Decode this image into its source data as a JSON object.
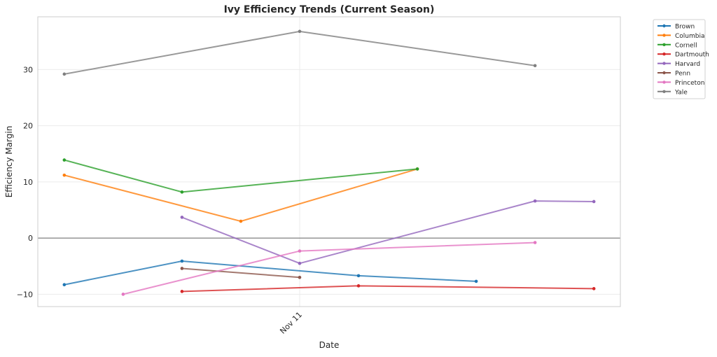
{
  "chart_data": {
    "type": "line",
    "title": "Ivy Efficiency Trends (Current Season)",
    "xlabel": "Date",
    "ylabel": "Efficiency Margin",
    "x_note": "x values are day offsets relative to the labeled tick",
    "xlim": [
      -4.45,
      5.45
    ],
    "ylim": [
      -12.2,
      39.4
    ],
    "xticks": [
      {
        "x": 0,
        "label": "Nov 11"
      }
    ],
    "yticks": [
      -10,
      0,
      10,
      20,
      30
    ],
    "grid": true,
    "reference_line_y": 0,
    "legend_placement": "outside-top-right",
    "series": [
      {
        "name": "Brown",
        "color": "#1f77b4",
        "points": [
          [
            -4,
            -8.3
          ],
          [
            -2,
            -4.1
          ],
          [
            1,
            -6.7
          ],
          [
            3,
            -7.7
          ]
        ]
      },
      {
        "name": "Columbia",
        "color": "#ff7f0e",
        "points": [
          [
            -4,
            11.2
          ],
          [
            -1,
            3.0
          ],
          [
            2,
            12.3
          ]
        ]
      },
      {
        "name": "Cornell",
        "color": "#2ca02c",
        "points": [
          [
            -4,
            13.9
          ],
          [
            -2,
            8.2
          ],
          [
            2,
            12.3
          ]
        ]
      },
      {
        "name": "Dartmouth",
        "color": "#d62728",
        "points": [
          [
            -2,
            -9.5
          ],
          [
            1,
            -8.5
          ],
          [
            5,
            -9.0
          ]
        ]
      },
      {
        "name": "Harvard",
        "color": "#9467bd",
        "points": [
          [
            -2,
            3.7
          ],
          [
            0,
            -4.5
          ],
          [
            4,
            6.6
          ],
          [
            5,
            6.5
          ]
        ]
      },
      {
        "name": "Penn",
        "color": "#8c564b",
        "points": [
          [
            -2,
            -5.4
          ],
          [
            0,
            -7.0
          ]
        ]
      },
      {
        "name": "Princeton",
        "color": "#e377c2",
        "points": [
          [
            -3,
            -10.0
          ],
          [
            0,
            -2.3
          ],
          [
            4,
            -0.8
          ]
        ]
      },
      {
        "name": "Yale",
        "color": "#7f7f7f",
        "points": [
          [
            -4,
            29.2
          ],
          [
            0,
            36.8
          ],
          [
            4,
            30.7
          ]
        ]
      }
    ]
  }
}
